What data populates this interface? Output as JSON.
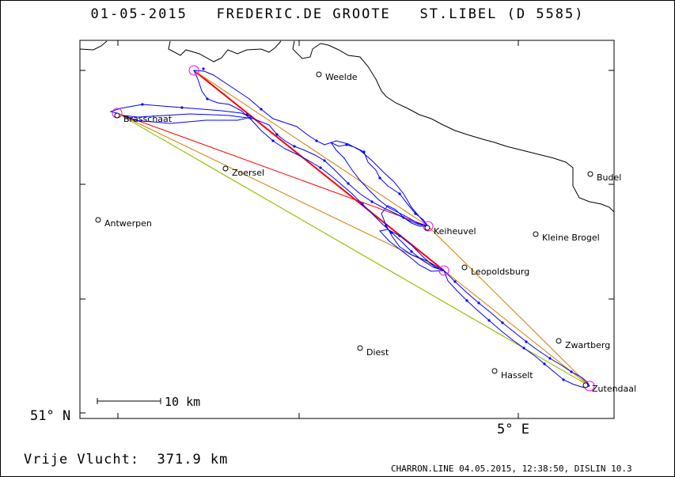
{
  "title": {
    "date": "01-05-2015",
    "pilot": "FREDERIC.DE GROOTE",
    "club": "ST.LIBEL (D 5585)"
  },
  "axes": {
    "lat_label": "51° N",
    "lon_label": "5° E"
  },
  "scale_bar": {
    "label": "10 km"
  },
  "places": [
    {
      "key": "weelde",
      "name": "Weelde"
    },
    {
      "key": "brasschaat",
      "name": "Brasschaat"
    },
    {
      "key": "zoersel",
      "name": "Zoersel"
    },
    {
      "key": "budel",
      "name": "Budel"
    },
    {
      "key": "antwerpen",
      "name": "Antwerpen"
    },
    {
      "key": "keiheuvel",
      "name": "Keiheuvel"
    },
    {
      "key": "kleine_brogel",
      "name": "Kleine Brogel"
    },
    {
      "key": "leopoldsburg",
      "name": "Leopoldsburg"
    },
    {
      "key": "zwartberg",
      "name": "Zwartberg"
    },
    {
      "key": "diest",
      "name": "Diest"
    },
    {
      "key": "hasselt",
      "name": "Hasselt"
    },
    {
      "key": "zutendaal",
      "name": "Zutendaal"
    }
  ],
  "colors": {
    "track": "#0000ff",
    "turnpoint": "#ff00ff",
    "leg_red": "#ff0000",
    "leg_orange": "#d08000",
    "leg_green": "#80e000",
    "border": "#000000"
  },
  "footer": {
    "distance": "Vrije Vlucht:  371.9 km",
    "credit": "CHARRON.LINE 04.05.2015, 12:38:50, DISLIN 10.3"
  }
}
